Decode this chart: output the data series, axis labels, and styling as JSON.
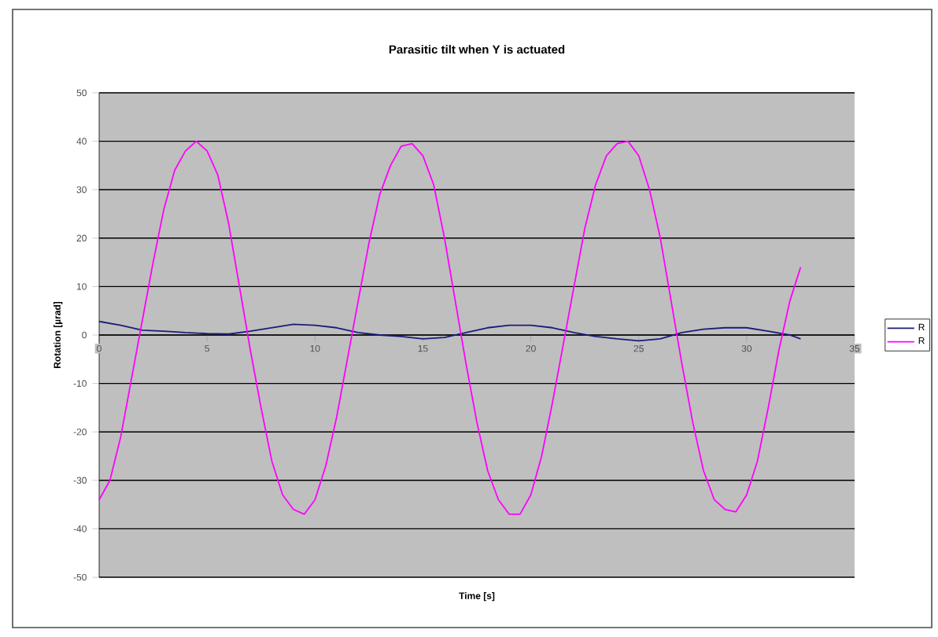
{
  "chart_data": {
    "type": "line",
    "title": "Parasitic tilt when Y is actuated",
    "xlabel": "Time [s]",
    "ylabel": "Rotation [µrad]",
    "xlim": [
      0,
      35
    ],
    "xticks": [
      0,
      5,
      10,
      15,
      20,
      25,
      30,
      35
    ],
    "ylim": [
      -50,
      50
    ],
    "yticks": [
      -50,
      -40,
      -30,
      -20,
      -10,
      0,
      10,
      20,
      30,
      40,
      50
    ],
    "grid": "y",
    "legend": "right",
    "series": [
      {
        "name": "R",
        "color": "#1c1c7c",
        "x": [
          0,
          1,
          2,
          3,
          4,
          5,
          6,
          7,
          8,
          9,
          10,
          11,
          12,
          13,
          14,
          15,
          16,
          17,
          18,
          19,
          20,
          21,
          22,
          23,
          24,
          25,
          26,
          27,
          28,
          29,
          30,
          31,
          32,
          32.5
        ],
        "values": [
          2.8,
          2,
          1,
          0.8,
          0.5,
          0.3,
          0.2,
          0.8,
          1.5,
          2.2,
          2,
          1.5,
          0.5,
          0,
          -0.3,
          -0.8,
          -0.5,
          0.5,
          1.5,
          2,
          2,
          1.5,
          0.5,
          -0.3,
          -0.8,
          -1.2,
          -0.8,
          0.5,
          1.2,
          1.5,
          1.5,
          0.8,
          0,
          -0.8
        ]
      },
      {
        "name": "R",
        "color": "#ff00ff",
        "x": [
          0,
          0.5,
          1,
          1.5,
          2,
          2.5,
          3,
          3.5,
          4,
          4.5,
          5,
          5.5,
          6,
          6.5,
          7,
          7.5,
          8,
          8.5,
          9,
          9.5,
          10,
          10.5,
          11,
          11.5,
          12,
          12.5,
          13,
          13.5,
          14,
          14.5,
          15,
          15.5,
          16,
          16.5,
          17,
          17.5,
          18,
          18.5,
          19,
          19.5,
          20,
          20.5,
          21,
          21.5,
          22,
          22.5,
          23,
          23.5,
          24,
          24.5,
          25,
          25.5,
          26,
          26.5,
          27,
          27.5,
          28,
          28.5,
          29,
          29.5,
          30,
          30.5,
          31,
          31.5,
          32,
          32.5
        ],
        "values": [
          -34,
          -30,
          -21,
          -9,
          3,
          15,
          26,
          34,
          38,
          40,
          38,
          33,
          23,
          10,
          -3,
          -15,
          -26,
          -33,
          -36,
          -37,
          -34,
          -27,
          -17,
          -5,
          7,
          19,
          29,
          35,
          39,
          39.5,
          37,
          31,
          20,
          7,
          -6,
          -18,
          -28,
          -34,
          -37,
          -37,
          -33,
          -25,
          -14,
          -2,
          10,
          22,
          31,
          37,
          39.5,
          40,
          37,
          30,
          20,
          7,
          -6,
          -18,
          -28,
          -34,
          -36,
          -36.5,
          -33,
          -26,
          -15,
          -3,
          7,
          14
        ]
      }
    ]
  }
}
